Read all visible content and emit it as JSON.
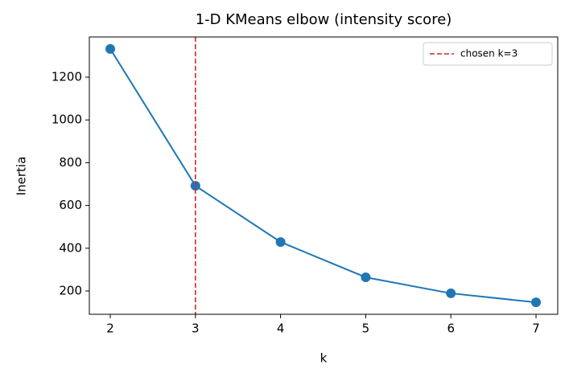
{
  "chart_data": {
    "type": "line",
    "title": "1-D KMeans elbow (intensity score)",
    "x_label": "k",
    "y_label": "Inertia",
    "x": [
      2,
      3,
      4,
      5,
      6,
      7
    ],
    "series": [
      {
        "color": "#1f77b4",
        "values": [
          1332,
          692,
          429,
          264,
          189,
          147
        ],
        "marker": "circle"
      }
    ],
    "vline": {
      "x": 3,
      "name": "chosen k=3",
      "color": "#d62728",
      "style": "dashed"
    },
    "xlim": [
      1.754,
      7.255
    ],
    "ylim": [
      91,
      1388
    ],
    "xticks": [
      2,
      3,
      4,
      5,
      6,
      7
    ],
    "yticks": [
      200,
      400,
      600,
      800,
      1000,
      1200
    ],
    "grid": false,
    "legend": "upper right"
  }
}
